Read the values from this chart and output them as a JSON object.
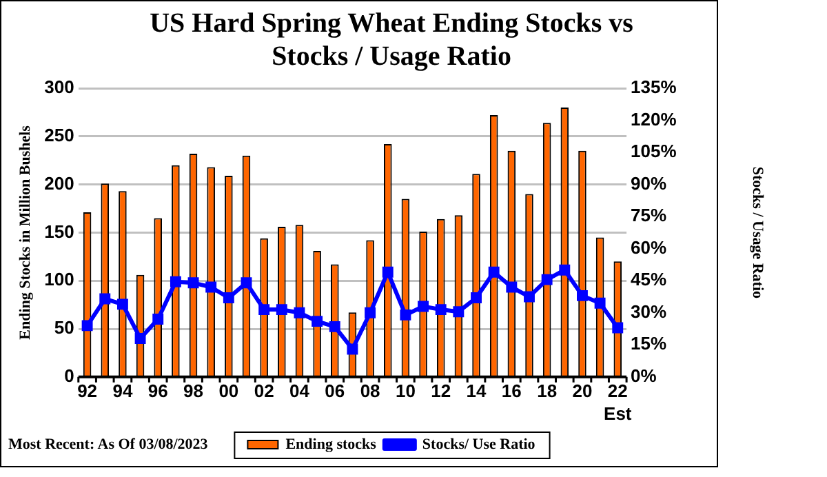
{
  "chart_data": {
    "type": "bar",
    "title": "US Hard Spring Wheat Ending Stocks vs Stocks / Usage Ratio",
    "ylabel": "Ending Stocks in Million Bushels",
    "y2label": "Stocks / Usage Ratio",
    "categories": [
      "92",
      null,
      "94",
      null,
      "96",
      null,
      "98",
      null,
      "00",
      null,
      "02",
      null,
      "04",
      null,
      "06",
      null,
      "08",
      null,
      "10",
      null,
      "12",
      null,
      "14",
      null,
      "16",
      null,
      "18",
      null,
      "20",
      null,
      "22"
    ],
    "series": [
      {
        "name": "Ending stocks",
        "color": "#ff6600",
        "values": [
          171,
          201,
          193,
          106,
          165,
          220,
          232,
          218,
          209,
          230,
          144,
          156,
          158,
          131,
          117,
          67,
          142,
          242,
          185,
          151,
          164,
          168,
          211,
          272,
          235,
          190,
          264,
          280,
          235,
          145,
          120
        ]
      },
      {
        "name": "Stocks/ Use Ratio",
        "type": "line",
        "axis": "y2",
        "color": "#0000ff",
        "values": [
          24,
          36.5,
          34,
          18,
          27,
          44.5,
          44,
          42,
          37,
          44,
          31.5,
          31.5,
          30,
          26,
          23.5,
          13,
          30,
          49,
          29,
          33,
          31.5,
          30.5,
          37,
          49,
          42,
          37.5,
          45.5,
          50,
          38,
          34.5,
          23
        ]
      }
    ],
    "ylim": [
      0,
      300
    ],
    "yticks": [
      0,
      50,
      100,
      150,
      200,
      250,
      300
    ],
    "y2lim": [
      0,
      135
    ],
    "y2ticks": [
      {
        "value": 0,
        "label": "0%"
      },
      {
        "value": 15,
        "label": "15%"
      },
      {
        "value": 30,
        "label": "30%"
      },
      {
        "value": 45,
        "label": "45%"
      },
      {
        "value": 60,
        "label": "60%"
      },
      {
        "value": 75,
        "label": "75%"
      },
      {
        "value": 90,
        "label": "90%"
      },
      {
        "value": 105,
        "label": "105%"
      },
      {
        "value": 120,
        "label": "120%"
      },
      {
        "value": 135,
        "label": "135%"
      }
    ],
    "grid": "y",
    "legend": "bottom",
    "marker": "square",
    "line_style": "solid",
    "annotations": [
      "Est",
      "Most Recent: As Of 03/08/2023"
    ]
  }
}
